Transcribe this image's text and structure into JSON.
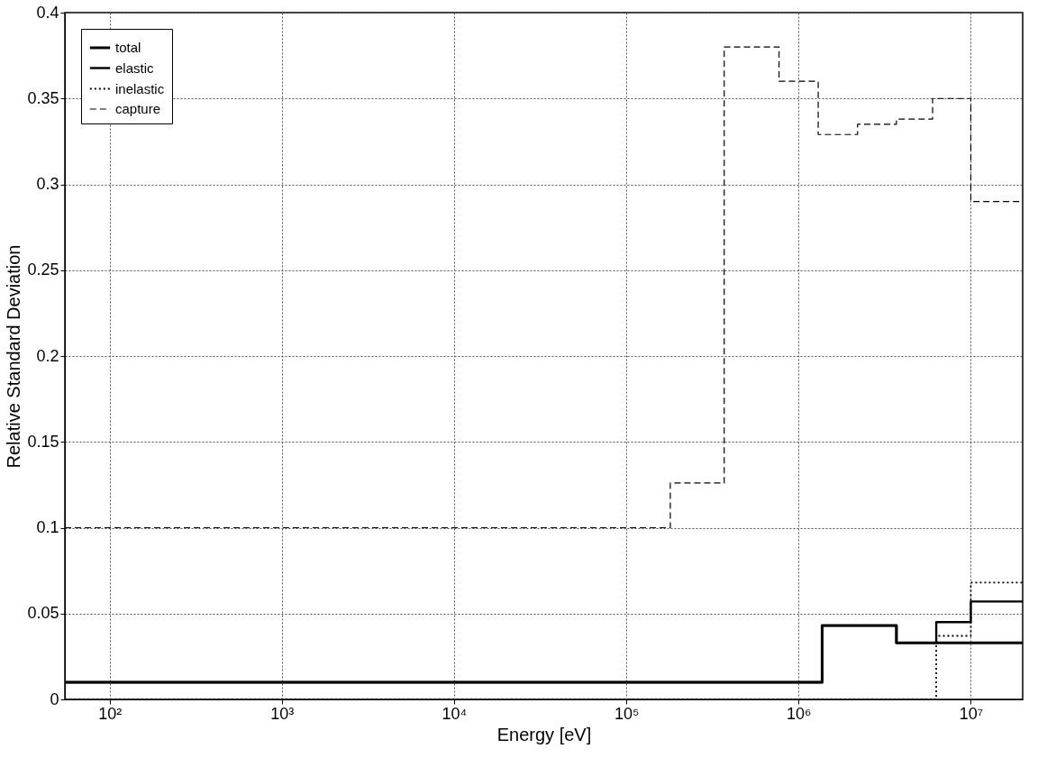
{
  "chart_data": {
    "type": "step",
    "xlabel": "Energy [eV]",
    "ylabel": "Relative Standard Deviation",
    "log": "x",
    "xlim": [
      55,
      20000000
    ],
    "xticks": [
      {
        "value": 100,
        "label": "10²"
      },
      {
        "value": 1000,
        "label": "10³"
      },
      {
        "value": 10000,
        "label": "10⁴"
      },
      {
        "value": 100000,
        "label": "10⁵"
      },
      {
        "value": 1000000,
        "label": "10⁶"
      },
      {
        "value": 10000000,
        "label": "10⁷"
      }
    ],
    "ylim": [
      0,
      0.4
    ],
    "yticks": [
      0,
      0.05,
      0.1,
      0.15,
      0.2,
      0.25,
      0.3,
      0.35,
      0.4
    ],
    "grid": true,
    "legend": "top left",
    "series": [
      {
        "name": "total",
        "color": "#000000",
        "line_style": "solid",
        "x": [
          55,
          1370000,
          3700000,
          20000000
        ],
        "values": [
          0.01,
          0.043,
          0.033,
          0.033
        ]
      },
      {
        "name": "elastic",
        "color": "#000000",
        "line_style": "solid",
        "x": [
          55,
          1370000,
          3700000,
          6300000,
          10000000,
          20000000
        ],
        "values": [
          0.01,
          0.043,
          0.033,
          0.045,
          0.057,
          0.057
        ]
      },
      {
        "name": "inelastic",
        "color": "#000000",
        "line_style": "dotted",
        "x": [
          55,
          6300000,
          10000000,
          20000000
        ],
        "values": [
          0,
          0.037,
          0.068,
          0.068
        ]
      },
      {
        "name": "capture",
        "color": "#000000",
        "line_style": "dashed",
        "x": [
          55,
          180000,
          370000,
          770000,
          1300000,
          2200000,
          3700000,
          6000000,
          10000000,
          20000000
        ],
        "values": [
          0.1,
          0.126,
          0.38,
          0.36,
          0.329,
          0.335,
          0.338,
          0.35,
          0.29,
          0.29
        ]
      }
    ]
  }
}
